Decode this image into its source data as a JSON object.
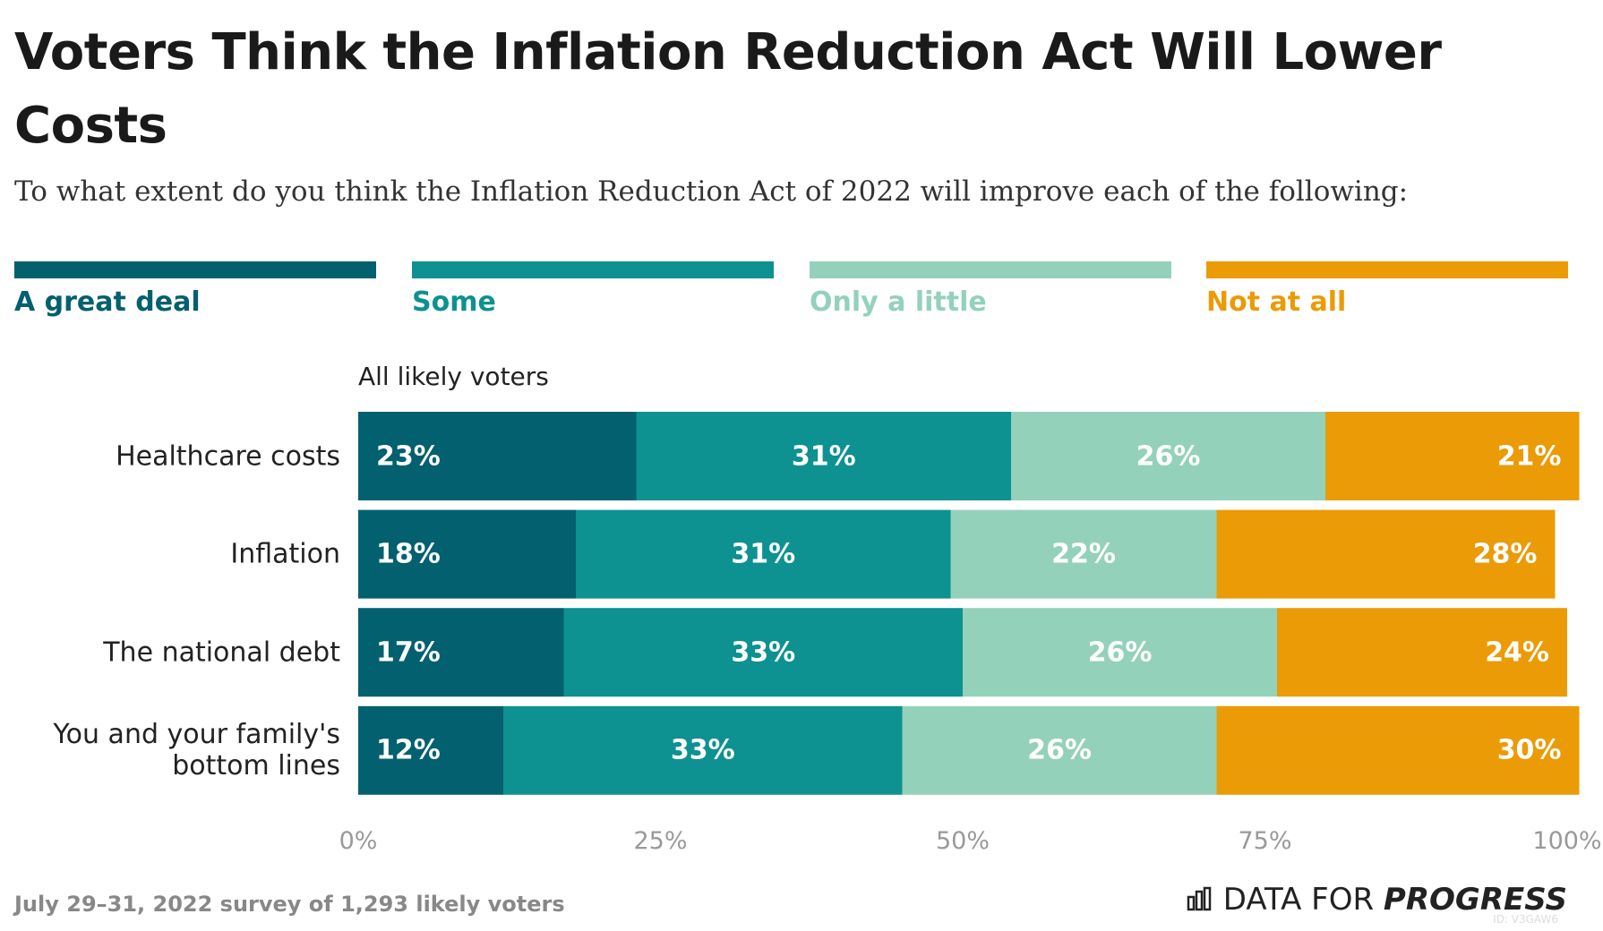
{
  "chart_data": {
    "type": "stacked-bar-horizontal",
    "title": "Voters Think the Inflation Reduction Act Will Lower Costs",
    "subtitle": "To what extent do you think the Inflation Reduction Act of 2022 will improve each of the following:",
    "group_label": "All likely voters",
    "categories": [
      "Healthcare costs",
      "Inflation",
      "The national debt",
      "You and your family's bottom lines"
    ],
    "series": [
      {
        "name": "A great deal",
        "color": "#02606f",
        "values": [
          23,
          18,
          17,
          12
        ],
        "value_labels": [
          "23%",
          "18%",
          "17%",
          "12%"
        ]
      },
      {
        "name": "Some",
        "color": "#0d9191",
        "values": [
          31,
          31,
          33,
          33
        ],
        "value_labels": [
          "31%",
          "31%",
          "33%",
          "33%"
        ]
      },
      {
        "name": "Only a little",
        "color": "#93d1bb",
        "values": [
          26,
          22,
          26,
          26
        ],
        "value_labels": [
          "26%",
          "22%",
          "26%",
          "26%"
        ]
      },
      {
        "name": "Not at all",
        "color": "#eb9b06",
        "values": [
          21,
          28,
          24,
          30
        ],
        "value_labels": [
          "21%",
          "28%",
          "24%",
          "30%"
        ]
      }
    ],
    "xlim": [
      0,
      100
    ],
    "xticks": [
      {
        "value": 0,
        "label": "0%"
      },
      {
        "value": 25,
        "label": "25%"
      },
      {
        "value": 50,
        "label": "50%"
      },
      {
        "value": 75,
        "label": "75%"
      },
      {
        "value": 100,
        "label": "100%"
      }
    ],
    "legend": "top",
    "source": "July 29–31, 2022 survey of 1,293 likely voters",
    "logo": {
      "prefix": "DATA FOR",
      "emphasis": "PROGRESS"
    },
    "chart_id": "ID: V3GAW6"
  }
}
